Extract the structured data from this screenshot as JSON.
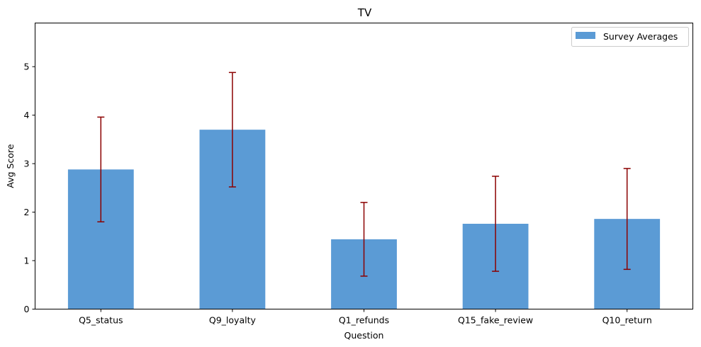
{
  "chart_data": {
    "type": "bar",
    "title": "TV",
    "xlabel": "Question",
    "ylabel": "Avg Score",
    "categories": [
      "Q5_status",
      "Q9_loyalty",
      "Q1_refunds",
      "Q15_fake_review",
      "Q10_return"
    ],
    "series": [
      {
        "name": "Survey Averages",
        "values": [
          2.88,
          3.7,
          1.44,
          1.76,
          1.86
        ],
        "error": [
          1.08,
          1.18,
          0.76,
          0.98,
          1.04
        ],
        "color": "#5b9bd5",
        "error_color": "#8b0000"
      }
    ],
    "ylim": [
      0,
      5.9
    ],
    "yticks": [
      "0",
      "1",
      "2",
      "3",
      "4",
      "5"
    ],
    "grid": false,
    "legend_position": "top-right"
  }
}
